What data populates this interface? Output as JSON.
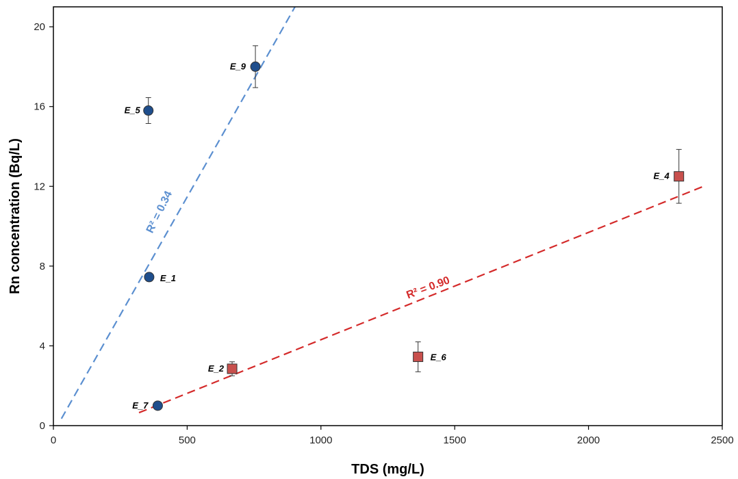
{
  "chart_data": {
    "type": "scatter",
    "title": "",
    "xlabel": "TDS (mg/L)",
    "ylabel": "Rn concentration (Bq/L)",
    "xlim": [
      0,
      2500
    ],
    "ylim": [
      0,
      21
    ],
    "xticks": [
      0,
      500,
      1000,
      1500,
      2000,
      2500
    ],
    "yticks": [
      0,
      4,
      8,
      12,
      16,
      20
    ],
    "grid": false,
    "legend": "none",
    "series": [
      {
        "color": "#1f4e8c",
        "marker": "circle",
        "points": [
          {
            "label": "E_5",
            "x": 355,
            "y": 15.8,
            "err": 0.65
          },
          {
            "label": "E_9",
            "x": 755,
            "y": 18.0,
            "err": 1.05
          },
          {
            "label": "E_1",
            "x": 358,
            "y": 7.45,
            "err": 0.0
          },
          {
            "label": "E_7",
            "x": 390,
            "y": 1.0,
            "err": 0.0
          }
        ],
        "trendline": {
          "r2_label": "R² = 0.34",
          "color": "#5b8fd0",
          "x1": 30,
          "y1": 0.35,
          "x2": 903,
          "y2": 21
        }
      },
      {
        "color": "#c8504d",
        "marker": "square",
        "points": [
          {
            "label": "E_2",
            "x": 668,
            "y": 2.85,
            "err": 0.35
          },
          {
            "label": "E_6",
            "x": 1363,
            "y": 3.45,
            "err": 0.75
          },
          {
            "label": "E_4",
            "x": 2338,
            "y": 12.5,
            "err": 1.35
          }
        ],
        "trendline": {
          "r2_label": "R² = 0.90",
          "color": "#d42a2a",
          "x1": 320,
          "y1": 0.65,
          "x2": 2430,
          "y2": 12.0
        }
      }
    ]
  }
}
